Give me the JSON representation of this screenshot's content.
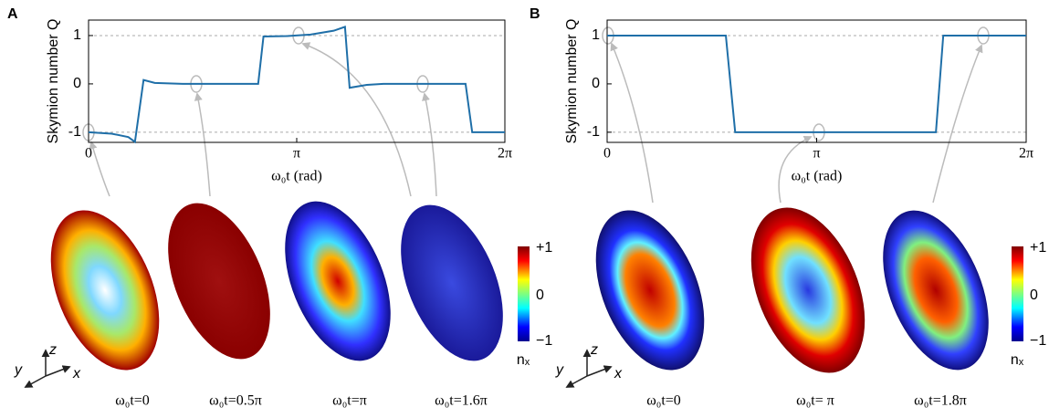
{
  "chart_data": [
    {
      "type": "line",
      "y_label": "Skymion number Q",
      "x_label": "ω₀t (rad)",
      "color": "#1f6fa8",
      "x": [
        0,
        0.35,
        0.6,
        0.7,
        0.83,
        1.0,
        1.42,
        2.56,
        2.64,
        3.0,
        3.35,
        3.7,
        3.87,
        3.94,
        4.2,
        4.45,
        5.69,
        5.79,
        6.2832
      ],
      "values": [
        -1,
        -1.03,
        -1.1,
        -1.2,
        0.08,
        0.02,
        0,
        0,
        0.98,
        0.99,
        1.02,
        1.1,
        1.18,
        -0.08,
        -0.02,
        0,
        0,
        -1,
        -1
      ],
      "xlim": [
        0,
        6.2832
      ],
      "ylim": [
        -1.21,
        1.32
      ],
      "xticks": [
        0,
        {
          "value": 3.1416,
          "label": "π"
        },
        {
          "value": 6.2832,
          "label": "2π"
        }
      ],
      "yticks": [
        -1,
        0,
        1
      ],
      "hlines": [
        1,
        -1
      ]
    },
    {
      "type": "line",
      "y_label": "Skymion number Q",
      "x_label": "ω₀t (rad)",
      "color": "#1f6fa8",
      "x": [
        0,
        1.78,
        1.92,
        4.93,
        5.04,
        6.2832
      ],
      "values": [
        1,
        1,
        -1,
        -1,
        1,
        1
      ],
      "xlim": [
        0,
        6.2832
      ],
      "ylim": [
        -1.21,
        1.32
      ],
      "xticks": [
        0,
        {
          "value": 3.1416,
          "label": "π"
        },
        {
          "value": 6.2832,
          "label": "2π"
        }
      ],
      "yticks": [
        -1,
        0,
        1
      ],
      "hlines": [
        1,
        -1
      ]
    }
  ],
  "panels": [
    {
      "label": "A",
      "captions": [
        "ω₀t=0",
        "ω₀t=0.5π",
        "ω₀t=π",
        "ω₀t=1.6π"
      ],
      "colorbar": {
        "ticks": [
          "+1",
          "0",
          "−1"
        ],
        "label": "nₓ"
      },
      "triad": [
        "z",
        "y",
        "x"
      ]
    },
    {
      "label": "B",
      "captions": [
        "ω₀t=0",
        "ω₀t= π",
        "ω₀t=1.8π"
      ],
      "colorbar": {
        "ticks": [
          "+1",
          "0",
          "−1"
        ],
        "label": "nₓ"
      },
      "triad": [
        "z",
        "y",
        "x"
      ]
    }
  ]
}
